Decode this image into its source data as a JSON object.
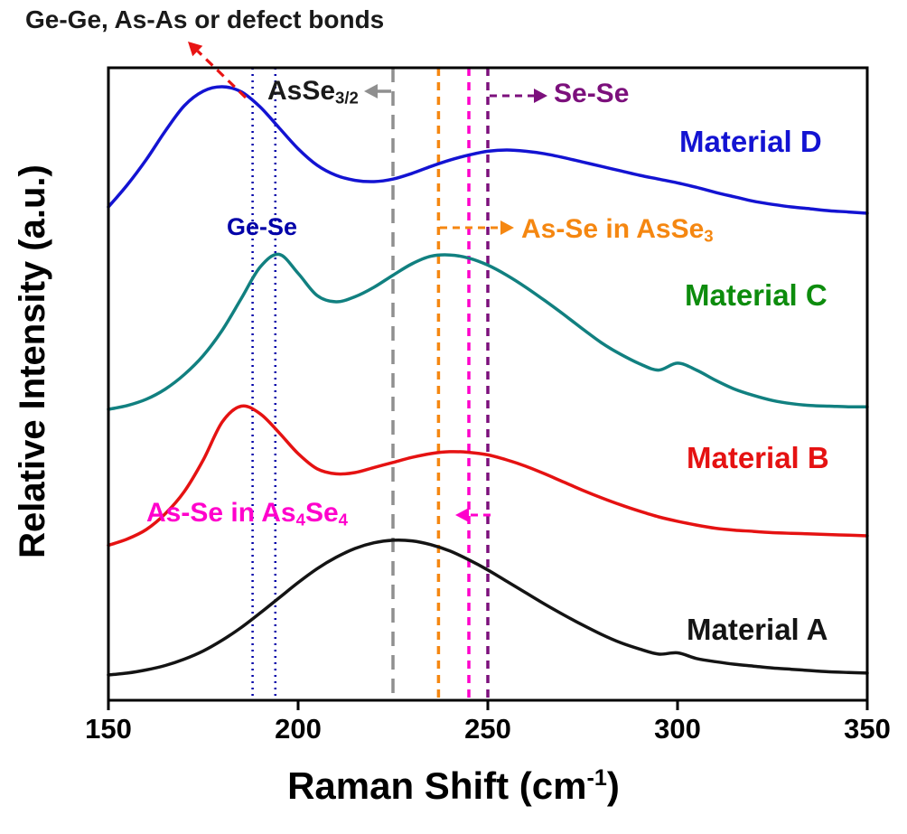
{
  "chart_data": {
    "type": "line",
    "title": "",
    "ylabel": "Relative Intensity (a.u.)",
    "xlabel_parts": [
      {
        "t": "Raman Shift (cm"
      },
      {
        "t": "-1",
        "sup": true
      },
      {
        "t": ")"
      }
    ],
    "xlim": [
      150,
      350
    ],
    "x_ticks": [
      150,
      200,
      250,
      300,
      350
    ],
    "grid": false,
    "legend_position": "inline-right-labels",
    "y_unit": "relative intensity, percent of plot height (a.u., spectra offset vertically)",
    "x": [
      150,
      155,
      160,
      165,
      170,
      175,
      180,
      185,
      190,
      195,
      200,
      205,
      210,
      215,
      220,
      225,
      230,
      235,
      240,
      245,
      250,
      255,
      260,
      265,
      270,
      275,
      280,
      285,
      290,
      295,
      300,
      305,
      310,
      315,
      320,
      325,
      330,
      335,
      340,
      345,
      350
    ],
    "series": [
      {
        "name": "Material D",
        "color": "#1313d2",
        "label_color": "#1313d2",
        "y": [
          78,
          81.5,
          85.5,
          90,
          94,
          96.3,
          97,
          96.2,
          93.8,
          90.5,
          87.2,
          84.6,
          83,
          82.2,
          82,
          82.4,
          83.3,
          84.4,
          85.4,
          86.2,
          86.8,
          87,
          86.8,
          86.4,
          85.8,
          85.1,
          84.4,
          83.7,
          83,
          82.4,
          81.8,
          81.1,
          80.3,
          79.6,
          78.9,
          78.4,
          78,
          77.7,
          77.4,
          77.2,
          77
        ]
      },
      {
        "name": "Material C",
        "color": "#118080",
        "label_color": "#0d8c0d",
        "y": [
          46,
          46.6,
          47.6,
          49.2,
          51.5,
          54.5,
          58.5,
          63.5,
          68.5,
          70.5,
          67.5,
          64,
          63,
          63.8,
          65.3,
          67.2,
          69,
          70.2,
          70.4,
          69.9,
          68.8,
          67.2,
          65.3,
          63.2,
          61,
          58.7,
          56.5,
          54.7,
          53.2,
          52.2,
          53.3,
          52.2,
          50.6,
          49.2,
          48.2,
          47.4,
          46.9,
          46.6,
          46.5,
          46.4,
          46.4
        ]
      },
      {
        "name": "Material B",
        "color": "#e51212",
        "label_color": "#e51212",
        "y": [
          24.5,
          25.5,
          27,
          29.5,
          33,
          38,
          44,
          46.5,
          45.3,
          42.3,
          39,
          36.6,
          35.8,
          36,
          36.8,
          37.6,
          38.4,
          39,
          39.3,
          39.2,
          38.8,
          38,
          37,
          35.8,
          34.5,
          33.2,
          32,
          30.9,
          29.9,
          29,
          28.3,
          27.7,
          27.2,
          26.9,
          26.7,
          26.5,
          26.4,
          26.3,
          26.2,
          26.1,
          26
        ]
      },
      {
        "name": "Material A",
        "color": "#141414",
        "label_color": "#141414",
        "y": [
          4,
          4.3,
          4.8,
          5.5,
          6.5,
          7.8,
          9.5,
          11.5,
          13.8,
          16.2,
          18.6,
          20.8,
          22.6,
          24,
          24.9,
          25.3,
          25.2,
          24.6,
          23.6,
          22.2,
          20.6,
          18.8,
          17,
          15.2,
          13.5,
          11.9,
          10.4,
          9.1,
          8.1,
          7.3,
          7.5,
          6.6,
          6.1,
          5.7,
          5.4,
          5.1,
          4.9,
          4.7,
          4.5,
          4.4,
          4.3
        ]
      }
    ],
    "reference_lines": [
      {
        "x": 188,
        "assignment": "Ge-Se band (left edge)",
        "color": "#0000a8",
        "dash": "2 5",
        "width": 2.5
      },
      {
        "x": 194,
        "assignment": "Ge-Se band (right edge)",
        "color": "#0000a8",
        "dash": "2 5",
        "width": 2.5
      },
      {
        "x": 225,
        "assignment": "AsSe3/2",
        "color": "#8f8f8f",
        "dash": "16 10",
        "width": 3.5
      },
      {
        "x": 237,
        "assignment": "As-Se in AsSe3",
        "color": "#f58711",
        "dash": "9 7",
        "width": 3.5
      },
      {
        "x": 245,
        "assignment": "As-Se in As4Se4",
        "color": "#ff00cc",
        "dash": "9 7",
        "width": 3.5
      },
      {
        "x": 250,
        "assignment": "Se-Se",
        "color": "#7c107c",
        "dash": "9 7",
        "width": 3.5
      }
    ],
    "annotations": {
      "defect_bonds": {
        "parts": [
          {
            "t": "Ge-Ge, As-As or defect bonds"
          }
        ],
        "color": "#1a1a1a"
      },
      "asse_3_2": {
        "parts": [
          {
            "t": "AsSe"
          },
          {
            "t": "3/2",
            "sub": true
          }
        ],
        "color": "#1a1a1a"
      },
      "se_se": {
        "parts": [
          {
            "t": "Se-Se"
          }
        ],
        "color": "#7c107c"
      },
      "ge_se": {
        "parts": [
          {
            "t": "Ge-Se"
          }
        ],
        "color": "#0000a8"
      },
      "as_se_in_asse3": {
        "parts": [
          {
            "t": "As-Se in AsSe"
          },
          {
            "t": "3",
            "sub": true
          }
        ],
        "color": "#f58711"
      },
      "as_se_in_as4se4": {
        "parts": [
          {
            "t": "As-Se in As"
          },
          {
            "t": "4",
            "sub": true
          },
          {
            "t": "Se"
          },
          {
            "t": "4",
            "sub": true
          }
        ],
        "color": "#ff00cc"
      }
    },
    "arrows": [
      {
        "name": "defect-bonds-arrow",
        "from": [
          272,
          108
        ],
        "to": [
          208,
          46
        ],
        "color": "#e81414",
        "dash": "10 7",
        "width": 3.2
      },
      {
        "name": "asse32-arrow",
        "from": [
          433,
          101
        ],
        "to": [
          403,
          101
        ],
        "color": "#8f8f8f",
        "dash": "",
        "width": 3.5
      },
      {
        "name": "se-se-arrow",
        "from": [
          542,
          106
        ],
        "to": [
          606,
          106
        ],
        "color": "#7c107c",
        "dash": "8 6",
        "width": 3
      },
      {
        "name": "asse3-arrow",
        "from": [
          487,
          252
        ],
        "to": [
          569,
          252
        ],
        "color": "#f58711",
        "dash": "8 6",
        "width": 3
      },
      {
        "name": "as4se4-arrow",
        "from": [
          543,
          570
        ],
        "to": [
          504,
          570
        ],
        "color": "#ff00cc",
        "dash": "8 6",
        "width": 3
      }
    ]
  }
}
